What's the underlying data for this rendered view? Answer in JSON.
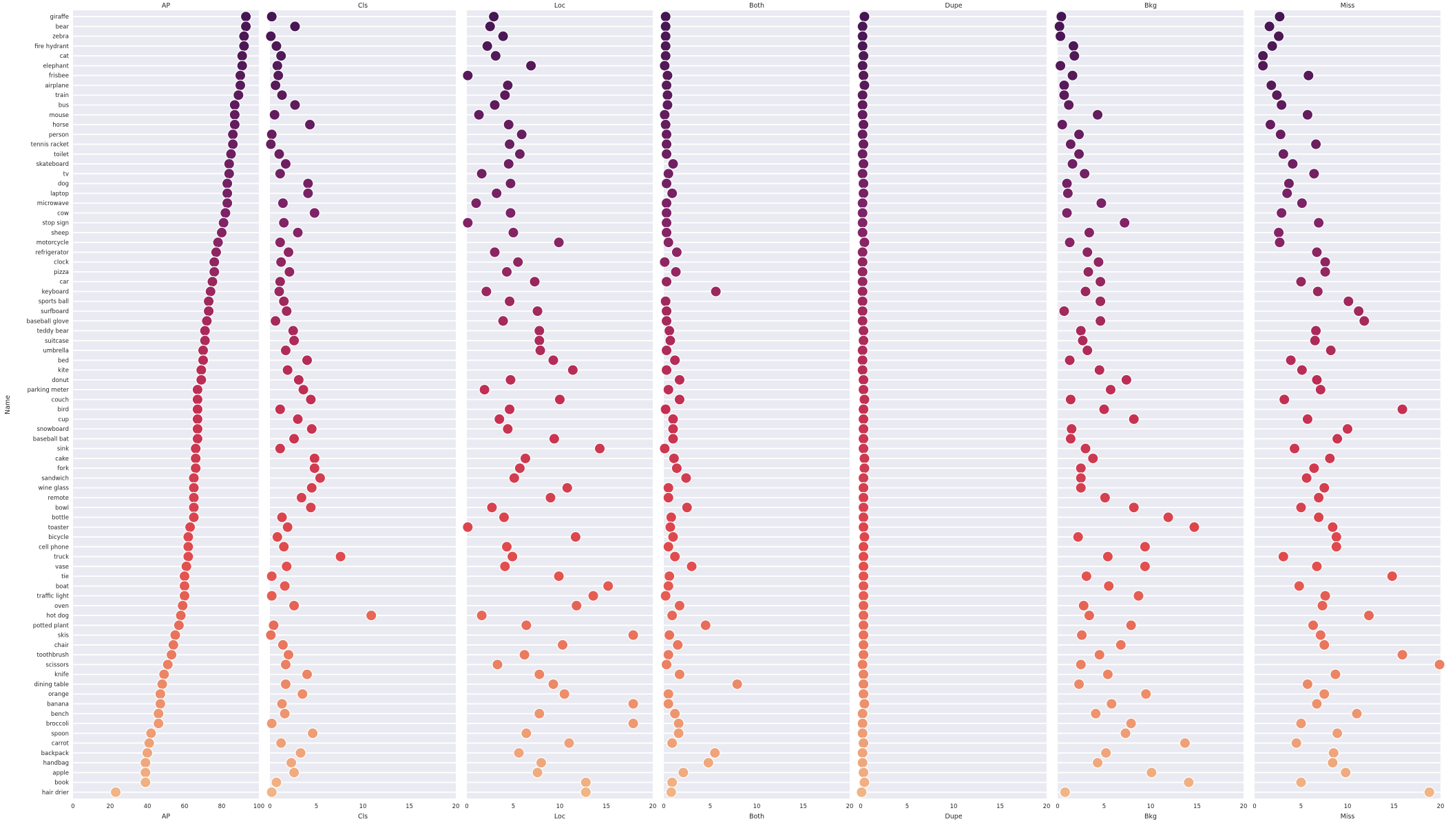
{
  "chart_data": {
    "type": "scatter",
    "ylabel": "Name",
    "categories": [
      "giraffe",
      "bear",
      "zebra",
      "fire hydrant",
      "cat",
      "elephant",
      "frisbee",
      "airplane",
      "train",
      "bus",
      "mouse",
      "horse",
      "person",
      "tennis racket",
      "toilet",
      "skateboard",
      "tv",
      "dog",
      "laptop",
      "microwave",
      "cow",
      "stop sign",
      "sheep",
      "motorcycle",
      "refrigerator",
      "clock",
      "pizza",
      "car",
      "keyboard",
      "sports ball",
      "surfboard",
      "baseball glove",
      "teddy bear",
      "suitcase",
      "umbrella",
      "bed",
      "kite",
      "donut",
      "parking meter",
      "couch",
      "bird",
      "cup",
      "snowboard",
      "baseball bat",
      "sink",
      "cake",
      "fork",
      "sandwich",
      "wine glass",
      "remote",
      "bowl",
      "bottle",
      "toaster",
      "bicycle",
      "cell phone",
      "truck",
      "vase",
      "tie",
      "boat",
      "traffic light",
      "oven",
      "hot dog",
      "potted plant",
      "skis",
      "chair",
      "toothbrush",
      "scissors",
      "knife",
      "dining table",
      "orange",
      "banana",
      "bench",
      "broccoli",
      "spoon",
      "carrot",
      "backpack",
      "handbag",
      "apple",
      "book",
      "hair drier"
    ],
    "panels": [
      {
        "title": "AP",
        "xlabel": "AP",
        "xlim": [
          0,
          100
        ],
        "ticks": [
          0,
          20,
          40,
          60,
          80,
          100
        ],
        "values": [
          93,
          93,
          92,
          92,
          91,
          91,
          90,
          90,
          89,
          87,
          87,
          87,
          86,
          86,
          85,
          84,
          84,
          83,
          83,
          83,
          82,
          81,
          80,
          78,
          77,
          76,
          76,
          75,
          74,
          73,
          73,
          72,
          71,
          71,
          70,
          70,
          69,
          69,
          67,
          67,
          67,
          67,
          67,
          67,
          66,
          66,
          66,
          65,
          65,
          65,
          65,
          65,
          63,
          62,
          62,
          62,
          61,
          60,
          60,
          60,
          59,
          58,
          57,
          55,
          54,
          53,
          51,
          49,
          48,
          47,
          47,
          46,
          46,
          42,
          41,
          40,
          39,
          39,
          39,
          23
        ]
      },
      {
        "title": "Cls",
        "xlabel": "Cls",
        "xlim": [
          0,
          20
        ],
        "ticks": [
          0,
          5,
          10,
          15,
          20
        ],
        "values": [
          0.2,
          2.7,
          0.1,
          0.7,
          1.2,
          0.8,
          0.9,
          0.6,
          1.3,
          2.7,
          0.5,
          4.3,
          0.2,
          0.1,
          1.0,
          1.7,
          1.1,
          4.1,
          4.1,
          1.4,
          4.8,
          1.5,
          3.0,
          1.1,
          2.0,
          1.2,
          2.1,
          1.1,
          1.0,
          1.5,
          1.8,
          0.6,
          2.5,
          2.6,
          1.7,
          4.0,
          1.9,
          3.1,
          3.6,
          4.4,
          1.1,
          3.0,
          4.5,
          2.6,
          1.1,
          4.8,
          4.8,
          5.4,
          4.5,
          3.4,
          4.4,
          1.3,
          1.9,
          0.8,
          1.5,
          7.6,
          1.8,
          0.2,
          1.6,
          0.2,
          2.6,
          10.9,
          0.4,
          0.1,
          1.4,
          2.0,
          1.7,
          4.0,
          1.7,
          3.5,
          1.3,
          1.6,
          0.2,
          4.6,
          1.2,
          3.3,
          2.3,
          2.6,
          0.7,
          0.2
        ]
      },
      {
        "title": "Loc",
        "xlabel": "Loc",
        "xlim": [
          0,
          20
        ],
        "ticks": [
          0,
          5,
          10,
          15,
          20
        ],
        "values": [
          2.9,
          2.5,
          3.9,
          2.2,
          3.1,
          6.9,
          0.1,
          4.4,
          4.1,
          3.0,
          1.3,
          4.5,
          5.9,
          4.6,
          5.7,
          4.5,
          1.6,
          4.7,
          3.2,
          1.0,
          4.7,
          0.1,
          5.0,
          9.9,
          3.0,
          5.5,
          4.3,
          7.3,
          2.1,
          4.6,
          7.6,
          3.9,
          7.8,
          7.8,
          7.9,
          9.3,
          11.4,
          4.7,
          1.9,
          10.0,
          4.6,
          3.5,
          4.4,
          9.4,
          14.3,
          6.3,
          5.7,
          5.1,
          10.8,
          9.0,
          2.7,
          4.0,
          0.1,
          11.7,
          4.3,
          4.9,
          4.1,
          9.9,
          15.2,
          13.6,
          11.8,
          1.6,
          6.4,
          17.9,
          10.3,
          6.2,
          3.3,
          7.8,
          9.3,
          10.5,
          17.9,
          7.8,
          17.9,
          6.4,
          11.0,
          5.6,
          8.0,
          7.6,
          12.8,
          12.8
        ]
      },
      {
        "title": "Both",
        "xlabel": "Both",
        "xlim": [
          0,
          20
        ],
        "ticks": [
          0,
          5,
          10,
          15,
          20
        ],
        "values": [
          0.2,
          0.2,
          0.2,
          0.2,
          0.2,
          0.1,
          0.4,
          0.3,
          0.4,
          0.4,
          0.1,
          0.2,
          0.3,
          0.3,
          0.3,
          1.0,
          0.5,
          0.3,
          0.9,
          0.3,
          0.3,
          0.3,
          0.3,
          0.5,
          1.4,
          0.1,
          1.3,
          0.3,
          5.6,
          0.2,
          0.3,
          0.3,
          0.6,
          0.7,
          0.3,
          1.2,
          0.3,
          1.7,
          0.5,
          1.7,
          0.2,
          1.0,
          1.0,
          1.0,
          0.1,
          1.1,
          1.4,
          2.4,
          0.5,
          0.5,
          2.5,
          0.8,
          0.7,
          1.0,
          0.5,
          1.2,
          3.0,
          0.6,
          0.5,
          0.2,
          1.7,
          0.9,
          4.5,
          0.6,
          1.5,
          0.5,
          0.3,
          1.7,
          7.9,
          0.5,
          0.5,
          1.2,
          1.6,
          1.6,
          0.9,
          5.5,
          4.8,
          2.1,
          0.9,
          0.8
        ]
      },
      {
        "title": "Dupe",
        "xlabel": "Dupe",
        "xlim": [
          0,
          20
        ],
        "ticks": [
          0,
          5,
          10,
          15,
          20
        ],
        "values": [
          0.4,
          0.2,
          0.2,
          0.2,
          0.3,
          0.2,
          0.3,
          0.4,
          0.2,
          0.2,
          0.2,
          0.3,
          0.2,
          0.3,
          0.2,
          0.3,
          0.2,
          0.3,
          0.3,
          0.2,
          0.2,
          0.2,
          0.2,
          0.4,
          0.2,
          0.2,
          0.2,
          0.2,
          0.2,
          0.2,
          0.2,
          0.2,
          0.3,
          0.3,
          0.2,
          0.2,
          0.2,
          0.3,
          0.3,
          0.4,
          0.3,
          0.3,
          0.3,
          0.3,
          0.3,
          0.4,
          0.4,
          0.3,
          0.3,
          0.3,
          0.3,
          0.3,
          0.3,
          0.4,
          0.3,
          0.3,
          0.3,
          0.3,
          0.3,
          0.3,
          0.3,
          0.3,
          0.3,
          0.3,
          0.3,
          0.3,
          0.2,
          0.3,
          0.3,
          0.3,
          0.4,
          0.2,
          0.2,
          0.2,
          0.3,
          0.2,
          0.2,
          0.3,
          0.4,
          0.1
        ]
      },
      {
        "title": "Bkg",
        "xlabel": "Bkg",
        "xlim": [
          0,
          20
        ],
        "ticks": [
          0,
          5,
          10,
          15,
          20
        ],
        "values": [
          0.4,
          0.2,
          0.3,
          1.7,
          1.8,
          0.3,
          1.6,
          0.7,
          0.7,
          1.2,
          4.3,
          0.5,
          2.3,
          1.4,
          2.3,
          1.6,
          2.9,
          1.0,
          1.1,
          4.7,
          1.0,
          7.2,
          3.4,
          1.3,
          3.2,
          4.4,
          3.3,
          4.6,
          3.0,
          4.6,
          0.7,
          4.6,
          2.5,
          2.7,
          3.2,
          1.3,
          4.5,
          7.4,
          5.7,
          1.4,
          5.0,
          8.2,
          1.5,
          1.4,
          3.0,
          3.8,
          2.5,
          2.5,
          2.5,
          5.1,
          8.2,
          11.9,
          14.7,
          2.2,
          9.4,
          5.4,
          9.4,
          3.1,
          5.5,
          8.7,
          2.8,
          3.4,
          7.9,
          2.6,
          6.8,
          4.5,
          2.5,
          5.4,
          2.3,
          9.5,
          5.8,
          4.1,
          7.9,
          7.3,
          13.7,
          5.2,
          4.3,
          10.1,
          14.1,
          0.8
        ]
      },
      {
        "title": "Miss",
        "xlabel": "Miss",
        "xlim": [
          0,
          20
        ],
        "ticks": [
          0,
          5,
          10,
          15,
          20
        ],
        "values": [
          2.7,
          1.6,
          2.6,
          1.9,
          0.9,
          0.9,
          5.8,
          1.8,
          2.4,
          2.9,
          5.7,
          1.7,
          2.8,
          6.6,
          3.1,
          4.1,
          6.4,
          3.7,
          3.5,
          5.1,
          2.9,
          6.9,
          2.6,
          2.7,
          6.7,
          7.6,
          7.6,
          5.0,
          6.8,
          10.1,
          11.2,
          11.8,
          6.6,
          6.5,
          8.2,
          3.9,
          5.1,
          6.7,
          7.1,
          3.2,
          15.9,
          5.7,
          10.0,
          8.9,
          4.3,
          8.1,
          6.4,
          5.6,
          7.5,
          6.9,
          5.0,
          6.9,
          8.4,
          8.8,
          8.8,
          3.1,
          6.7,
          14.8,
          4.8,
          7.6,
          7.3,
          12.3,
          6.3,
          7.1,
          7.5,
          15.9,
          19.9,
          8.7,
          5.7,
          7.5,
          6.7,
          11.0,
          5.0,
          8.9,
          4.5,
          8.5,
          8.4,
          9.8,
          5.0,
          18.8
        ]
      }
    ]
  }
}
